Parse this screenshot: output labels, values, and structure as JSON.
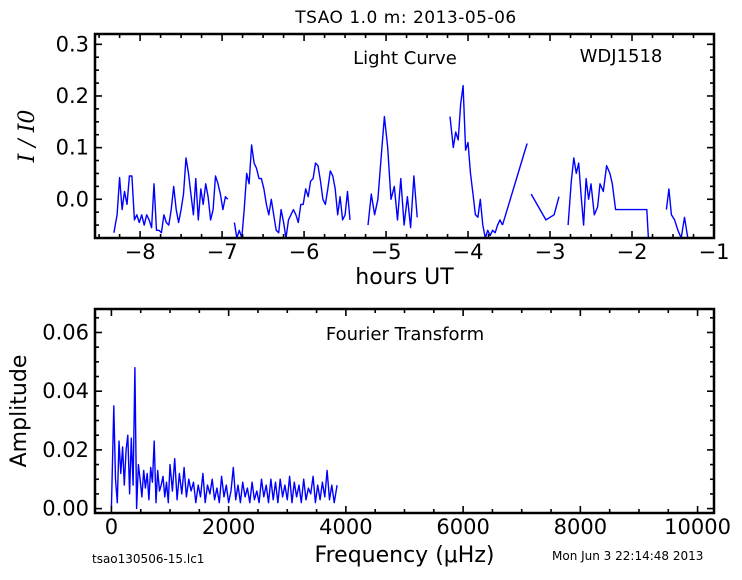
{
  "figure": {
    "title": "TSAO 1.0 m:  2013-05-06",
    "footer_left": "tsao130506-15.lc1",
    "footer_right": "Mon Jun  3 22:14:48 2013"
  },
  "chart_data": [
    {
      "type": "line",
      "title": "Light Curve",
      "annotation": "WDJ1518",
      "xlabel": "hours UT",
      "ylabel": "I / I0",
      "xlim": [
        -8.55,
        -1.0
      ],
      "ylim": [
        -0.075,
        0.32
      ],
      "xticks": [
        -8,
        -7,
        -6,
        -5,
        -4,
        -3,
        -2,
        -1
      ],
      "xtick_labels": [
        "−8",
        "−7",
        "−6",
        "−5",
        "−4",
        "−3",
        "−2",
        "−1"
      ],
      "yticks": [
        0.0,
        0.1,
        0.2,
        0.3
      ],
      "ytick_labels": [
        "0.0",
        "0.1",
        "0.2",
        "0.3"
      ],
      "color": "#0000ff",
      "series": [
        {
          "x": [
            -8.32,
            -8.28,
            -8.25,
            -8.22,
            -8.19,
            -8.16,
            -8.13,
            -8.1,
            -8.07,
            -8.04,
            -8.01,
            -7.98,
            -7.95,
            -7.92,
            -7.89,
            -7.86,
            -7.83,
            -7.8,
            -7.77,
            -7.74,
            -7.71,
            -7.68,
            -7.65,
            -7.62,
            -7.59,
            -7.56,
            -7.53,
            -7.5,
            -7.47,
            -7.44,
            -7.41,
            -7.38,
            -7.35,
            -7.32,
            -7.29,
            -7.26,
            -7.23,
            -7.2,
            -7.17,
            -7.14,
            -7.11,
            -7.08,
            -7.05,
            -7.02,
            -6.99,
            -6.96,
            -6.93
          ],
          "y": [
            -0.065,
            -0.03,
            0.042,
            -0.02,
            0.015,
            -0.01,
            0.045,
            0.045,
            -0.04,
            -0.03,
            -0.045,
            -0.03,
            -0.05,
            -0.03,
            -0.04,
            -0.055,
            0.03,
            -0.06,
            -0.06,
            -0.065,
            -0.03,
            -0.045,
            -0.05,
            -0.02,
            0.025,
            -0.02,
            -0.045,
            -0.02,
            0.01,
            0.08,
            0.05,
            0.01,
            -0.03,
            0.04,
            -0.04,
            0.02,
            -0.01,
            0.03,
            0.005,
            -0.04,
            -0.02,
            0.045,
            0.03,
            0.01,
            -0.02,
            0.005,
            0.0
          ]
        },
        {
          "x": [
            -6.85,
            -6.82,
            -6.79,
            -6.76,
            -6.73,
            -6.7,
            -6.67,
            -6.64,
            -6.61,
            -6.58,
            -6.55,
            -6.52,
            -6.49,
            -6.46,
            -6.43,
            -6.4,
            -6.37,
            -6.34,
            -6.31,
            -6.28,
            -6.25,
            -6.22,
            -6.19,
            -6.16,
            -6.13,
            -6.1,
            -6.07,
            -6.04,
            -6.01,
            -5.98,
            -5.95,
            -5.92,
            -5.89,
            -5.86,
            -5.83,
            -5.8,
            -5.77,
            -5.74,
            -5.71,
            -5.68,
            -5.65,
            -5.62,
            -5.59,
            -5.56,
            -5.53,
            -5.5,
            -5.47,
            -5.44
          ],
          "y": [
            -0.045,
            -0.075,
            -0.06,
            -0.075,
            -0.02,
            0.05,
            0.03,
            0.105,
            0.07,
            0.06,
            0.04,
            0.04,
            0.02,
            -0.01,
            -0.03,
            0.0,
            -0.03,
            -0.06,
            -0.065,
            -0.02,
            -0.045,
            -0.075,
            -0.04,
            -0.03,
            -0.02,
            -0.03,
            -0.045,
            -0.01,
            -0.01,
            0.02,
            0.005,
            0.035,
            0.04,
            0.07,
            0.065,
            0.035,
            0.0,
            -0.01,
            0.02,
            0.055,
            0.045,
            0.02,
            -0.03,
            0.005,
            -0.04,
            -0.03,
            0.015,
            -0.04
          ]
        },
        {
          "x": [
            -5.22,
            -5.18,
            -5.14,
            -5.1,
            -5.06,
            -5.02,
            -4.98,
            -4.94,
            -4.9,
            -4.86,
            -4.82,
            -4.78,
            -4.74,
            -4.7,
            -4.66,
            -4.62
          ],
          "y": [
            -0.05,
            0.01,
            -0.03,
            0.0,
            0.08,
            0.16,
            0.1,
            0.0,
            0.025,
            -0.04,
            0.04,
            -0.05,
            0.005,
            -0.055,
            0.045,
            -0.035
          ]
        },
        {
          "x": [
            -4.22,
            -4.18,
            -4.15,
            -4.12,
            -4.09,
            -4.06,
            -4.03,
            -4.0,
            -3.97,
            -3.94,
            -3.91,
            -3.88,
            -3.85,
            -3.82,
            -3.79,
            -3.76,
            -3.73,
            -3.7,
            -3.67,
            -3.64,
            -3.61,
            -3.58
          ],
          "y": [
            0.16,
            0.1,
            0.13,
            0.115,
            0.185,
            0.22,
            0.095,
            0.11,
            0.05,
            0.01,
            -0.03,
            -0.035,
            0.0,
            -0.05,
            -0.075,
            -0.06,
            -0.07,
            -0.06,
            -0.065,
            -0.05,
            -0.04,
            -0.05
          ]
        },
        {
          "x": [
            -3.58,
            -3.28
          ],
          "y": [
            -0.05,
            0.108
          ]
        },
        {
          "x": [
            -3.23,
            -3.05,
            -2.95,
            -2.89
          ],
          "y": [
            0.01,
            -0.04,
            -0.03,
            0.005
          ]
        },
        {
          "x": [
            -2.78,
            -2.74,
            -2.71,
            -2.68,
            -2.65,
            -2.62,
            -2.59,
            -2.56,
            -2.53,
            -2.5,
            -2.46,
            -2.42,
            -2.39,
            -2.35,
            -2.31,
            -2.27,
            -2.24,
            -2.2,
            -1.98,
            -1.82,
            -1.8
          ],
          "y": [
            -0.05,
            0.035,
            0.08,
            0.05,
            0.07,
            0.005,
            -0.05,
            0.04,
            0.0,
            0.03,
            -0.03,
            -0.015,
            0.03,
            0.015,
            0.065,
            0.05,
            0.03,
            -0.02,
            -0.02,
            -0.02,
            -0.075
          ]
        },
        {
          "x": [
            -1.58,
            -1.55,
            -1.52,
            -1.48,
            -1.44,
            -1.4,
            -1.36,
            -1.32
          ],
          "y": [
            -0.02,
            0.02,
            -0.03,
            -0.04,
            -0.06,
            -0.075,
            -0.035,
            -0.075
          ]
        }
      ]
    },
    {
      "type": "line",
      "title": "Fourier Transform",
      "xlabel": "Frequency (μHz)",
      "ylabel": "Amplitude",
      "xlim": [
        -280,
        10280
      ],
      "ylim": [
        -0.0015,
        0.068
      ],
      "xticks": [
        0,
        2000,
        4000,
        6000,
        8000,
        10000
      ],
      "xtick_labels": [
        "0",
        "2000",
        "4000",
        "6000",
        "8000",
        "10000"
      ],
      "yticks": [
        0.0,
        0.02,
        0.04,
        0.06
      ],
      "ytick_labels": [
        "0.00",
        "0.02",
        "0.04",
        "0.06"
      ],
      "color": "#0000ff",
      "series": [
        {
          "x": [
            0,
            40,
            70,
            100,
            130,
            160,
            190,
            220,
            250,
            280,
            310,
            340,
            370,
            400,
            430,
            460,
            490,
            520,
            550,
            580,
            610,
            640,
            670,
            700,
            730,
            760,
            790,
            820,
            850,
            880,
            910,
            940,
            970,
            1000,
            1040,
            1080,
            1120,
            1160,
            1200,
            1240,
            1280,
            1320,
            1360,
            1400,
            1440,
            1480,
            1520,
            1560,
            1600,
            1640,
            1680,
            1720,
            1760,
            1800,
            1840,
            1880,
            1920,
            1960,
            2000,
            2040,
            2080,
            2120,
            2160,
            2200,
            2240,
            2280,
            2320,
            2360,
            2400,
            2440,
            2480,
            2520,
            2560,
            2600,
            2640,
            2680,
            2720,
            2760,
            2800,
            2840,
            2880,
            2920,
            2960,
            3000,
            3040,
            3080,
            3120,
            3160,
            3200,
            3240,
            3280,
            3320,
            3360,
            3400,
            3440,
            3480,
            3520,
            3560,
            3600,
            3640,
            3680,
            3720,
            3760,
            3800,
            3850
          ],
          "y": [
            0.0,
            0.035,
            0.01,
            0.002,
            0.023,
            0.012,
            0.021,
            0.008,
            0.02,
            0.025,
            0.005,
            0.024,
            0.008,
            0.048,
            0.0,
            0.015,
            0.01,
            0.004,
            0.013,
            0.007,
            0.012,
            0.003,
            0.014,
            0.009,
            0.023,
            0.002,
            0.013,
            0.006,
            0.008,
            0.011,
            0.004,
            0.009,
            0.002,
            0.015,
            0.006,
            0.017,
            0.003,
            0.012,
            0.005,
            0.014,
            0.004,
            0.01,
            0.006,
            0.009,
            0.002,
            0.008,
            0.004,
            0.012,
            0.002,
            0.008,
            0.005,
            0.01,
            0.003,
            0.007,
            0.002,
            0.011,
            0.004,
            0.008,
            0.002,
            0.006,
            0.014,
            0.003,
            0.008,
            0.002,
            0.009,
            0.004,
            0.007,
            0.002,
            0.009,
            0.003,
            0.006,
            0.002,
            0.01,
            0.004,
            0.008,
            0.002,
            0.01,
            0.003,
            0.009,
            0.002,
            0.01,
            0.004,
            0.008,
            0.003,
            0.011,
            0.002,
            0.009,
            0.004,
            0.008,
            0.002,
            0.01,
            0.003,
            0.007,
            0.005,
            0.011,
            0.002,
            0.008,
            0.003,
            0.009,
            0.004,
            0.013,
            0.003,
            0.008,
            0.002,
            0.008
          ]
        }
      ]
    }
  ]
}
